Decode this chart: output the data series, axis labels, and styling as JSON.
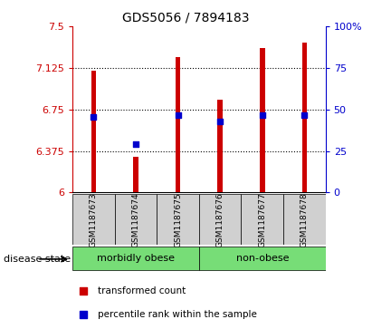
{
  "title": "GDS5056 / 7894183",
  "samples": [
    "GSM1187673",
    "GSM1187674",
    "GSM1187675",
    "GSM1187676",
    "GSM1187677",
    "GSM1187678"
  ],
  "bar_tops": [
    7.1,
    6.32,
    7.22,
    6.84,
    7.3,
    7.35
  ],
  "percentile_values": [
    6.68,
    6.44,
    6.7,
    6.64,
    6.7,
    6.7
  ],
  "y_min": 6.0,
  "y_max": 7.5,
  "y_ticks": [
    6.0,
    6.375,
    6.75,
    7.125,
    7.5
  ],
  "y_tick_labels": [
    "6",
    "6.375",
    "6.75",
    "7.125",
    "7.5"
  ],
  "right_y_ticks": [
    0,
    25,
    50,
    75,
    100
  ],
  "right_y_labels": [
    "0",
    "25",
    "50",
    "75",
    "100%"
  ],
  "bar_color": "#cc0000",
  "blue_color": "#0000cc",
  "bar_width": 0.12,
  "groups": [
    {
      "label": "morbidly obese",
      "indices": [
        0,
        1,
        2
      ],
      "color": "#77dd77"
    },
    {
      "label": "non-obese",
      "indices": [
        3,
        4,
        5
      ],
      "color": "#77dd77"
    }
  ],
  "disease_state_label": "disease state",
  "legend_items": [
    {
      "label": "transformed count",
      "color": "#cc0000",
      "marker": "s"
    },
    {
      "label": "percentile rank within the sample",
      "color": "#0000cc",
      "marker": "s"
    }
  ],
  "left_axis_color": "#cc0000",
  "right_axis_color": "#0000cc",
  "grid_color": "black",
  "sample_bg": "#d0d0d0",
  "plot_bg": "#ffffff"
}
